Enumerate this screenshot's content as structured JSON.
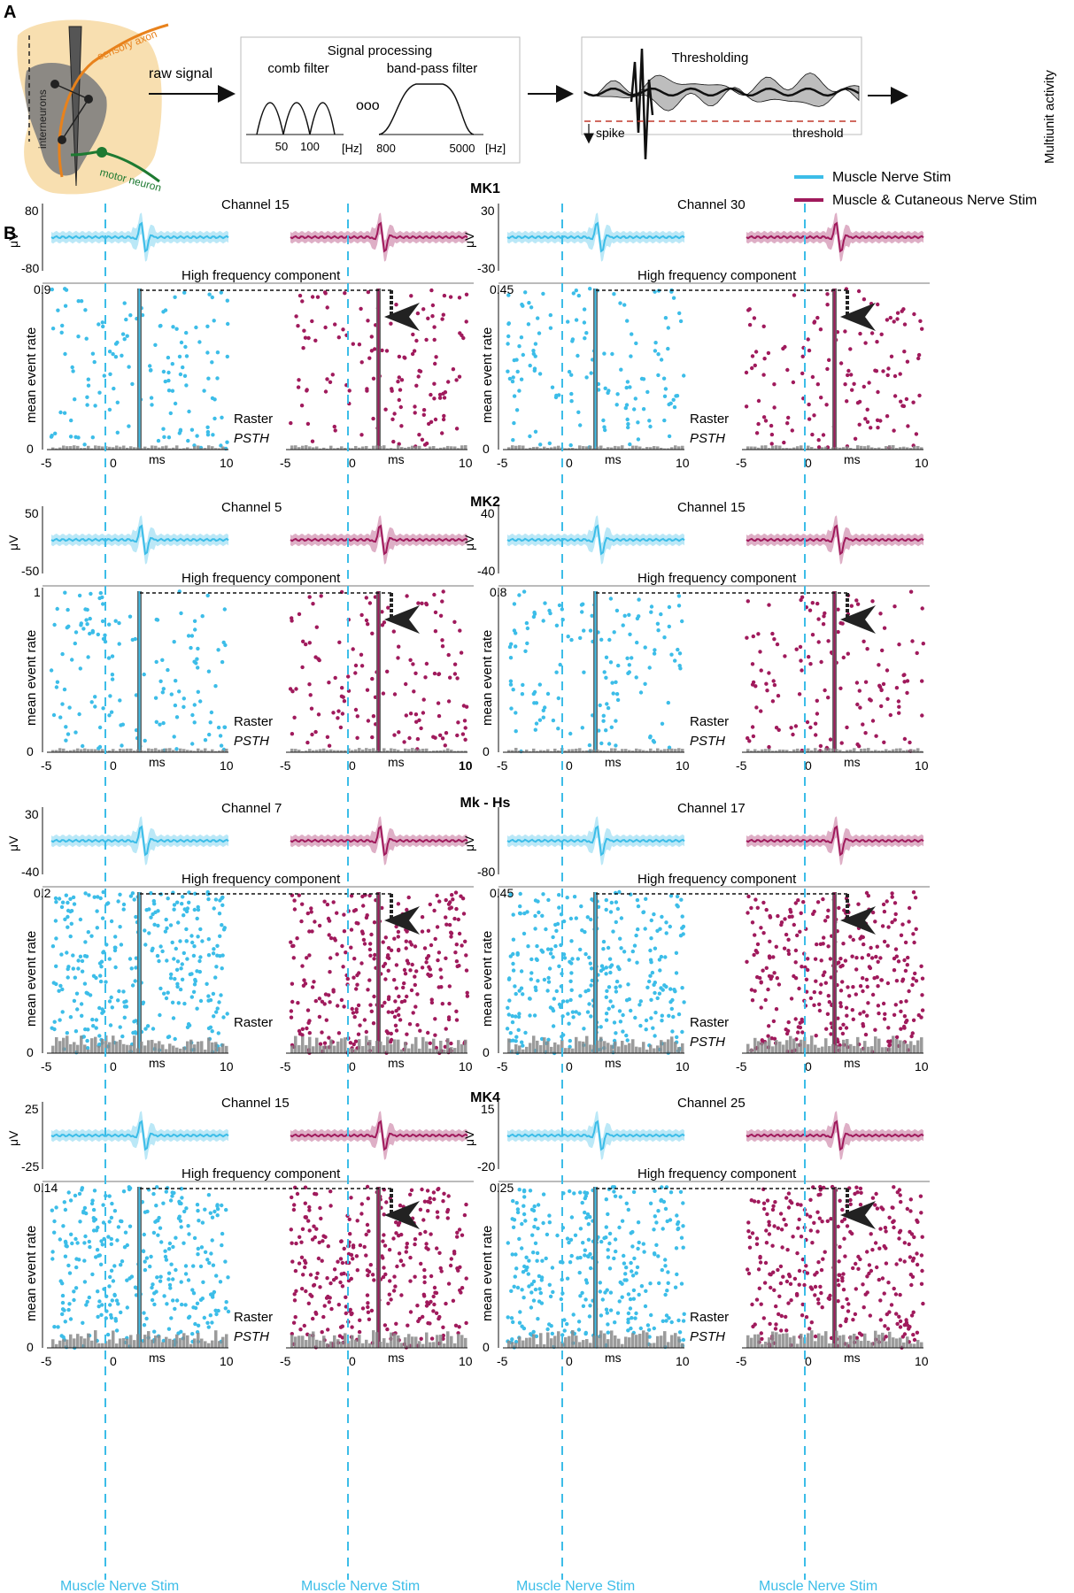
{
  "panel_a": {
    "letter": "A",
    "schematic": {
      "interneurons_label": "interneurons",
      "sensory_axon_label": "sensory axon",
      "motor_neuron_label": "motor neuron"
    },
    "raw_signal_label": "raw signal",
    "signal_processing": {
      "title": "Signal processing",
      "comb_label": "comb filter",
      "bandpass_label": "band-pass filter",
      "comb_ticks": [
        "50",
        "100"
      ],
      "comb_unit": "[Hz]",
      "band_ticks": [
        "800",
        "5000"
      ],
      "band_unit": "[Hz]",
      "ellipsis": "ooo"
    },
    "thresholding": {
      "title": "Thresholding",
      "spike_label": "spike",
      "threshold_label": "threshold"
    },
    "output_label": "Multiunit activity"
  },
  "legend": {
    "items": [
      {
        "label": "Muscle Nerve Stim",
        "color": "#3cbde8"
      },
      {
        "label": "Muscle & Cutaneous Nerve Stim",
        "color": "#a01a5c"
      }
    ]
  },
  "panel_b": {
    "letter": "B",
    "common": {
      "yunit": "μV",
      "hf_label": "High frequency component",
      "ylabel": "mean event rate",
      "raster_label": "Raster",
      "psth_label": "PSTH",
      "xunit": "ms",
      "xticks": [
        "-5",
        "0",
        "10"
      ],
      "stim_label": "Muscle Nerve Stim"
    },
    "sections": [
      {
        "subject": "MK1",
        "left": {
          "channel": "Channel 15",
          "ytop": "80",
          "ybot": "-80",
          "rate": "0.9"
        },
        "right": {
          "channel": "Channel 30",
          "ytop": "30",
          "ybot": "-30",
          "rate": "0.45"
        }
      },
      {
        "subject": "MK2",
        "left": {
          "channel": "Channel 5",
          "ytop": "50",
          "ybot": "-50",
          "rate": "1"
        },
        "right": {
          "channel": "Channel 15",
          "ytop": "40",
          "ybot": "-40",
          "rate": "0.8"
        }
      },
      {
        "subject": "Mk - Hs",
        "left": {
          "channel": "Channel 7",
          "ytop": "30",
          "ybot": "-40",
          "rate": "0.2"
        },
        "right": {
          "channel": "Channel 17",
          "ytop": "",
          "ybot": "-80",
          "rate": "0.45"
        }
      },
      {
        "subject": "MK4",
        "left": {
          "channel": "Channel 15",
          "ytop": "25",
          "ybot": "-25",
          "rate": "0.14"
        },
        "right": {
          "channel": "Channel 25",
          "ytop": "15",
          "ybot": "-20",
          "rate": "0.25"
        }
      }
    ],
    "special_ticks": {
      "mk2_left_right_10": "10"
    }
  },
  "colors": {
    "muscle": "#3cbde8",
    "both": "#a01a5c",
    "psth": "#8a8a8a",
    "tissue": "#f8dfb0"
  }
}
